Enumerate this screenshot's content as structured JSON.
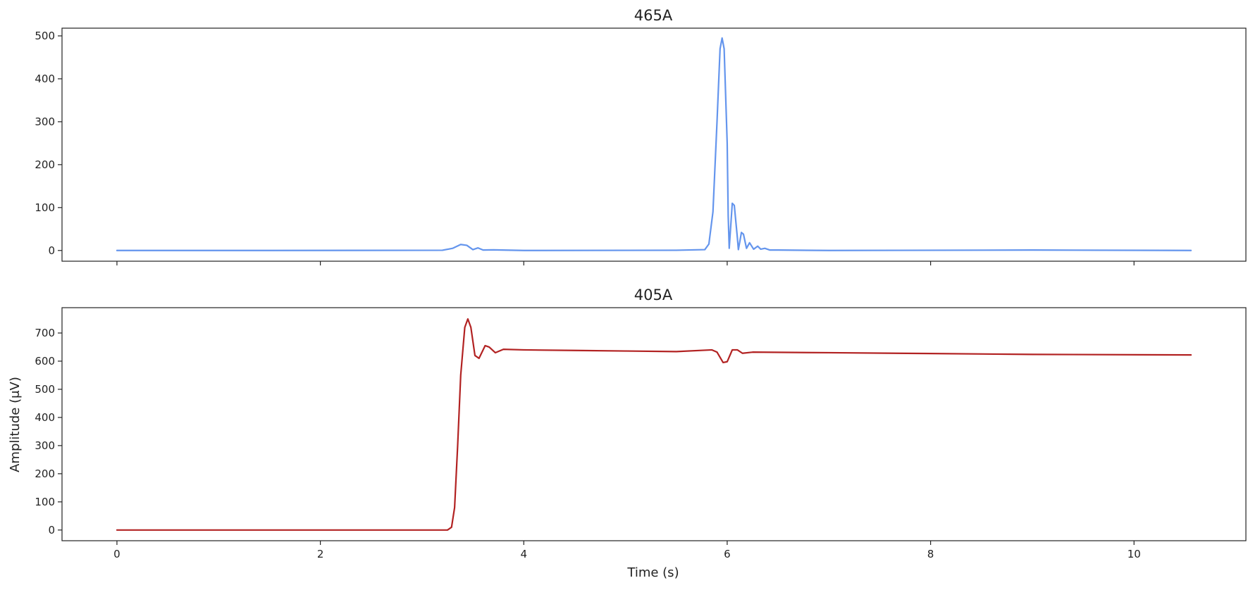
{
  "chart_data": [
    {
      "type": "line",
      "title": "465A",
      "xlabel": "",
      "ylabel": "",
      "xlim": [
        -0.54,
        11.1
      ],
      "ylim": [
        -25,
        518
      ],
      "x_ticks": [
        0,
        2,
        4,
        6,
        8,
        10
      ],
      "x_tick_labels_visible": false,
      "y_ticks": [
        0,
        100,
        200,
        300,
        400,
        500
      ],
      "y_tick_labels": [
        "0",
        "100",
        "200",
        "300",
        "400",
        "500"
      ],
      "grid": false,
      "series": [
        {
          "color": "#6495ED",
          "points": [
            [
              0,
              0
            ],
            [
              1.5,
              0
            ],
            [
              3.2,
              0.5
            ],
            [
              3.3,
              5
            ],
            [
              3.38,
              14
            ],
            [
              3.44,
              12
            ],
            [
              3.5,
              2
            ],
            [
              3.55,
              6
            ],
            [
              3.6,
              1
            ],
            [
              3.7,
              1.5
            ],
            [
              4.0,
              0
            ],
            [
              5.5,
              0.5
            ],
            [
              5.78,
              2
            ],
            [
              5.82,
              15
            ],
            [
              5.86,
              90
            ],
            [
              5.9,
              300
            ],
            [
              5.93,
              470
            ],
            [
              5.95,
              495
            ],
            [
              5.97,
              470
            ],
            [
              6.0,
              250
            ],
            [
              6.01,
              80
            ],
            [
              6.02,
              5
            ],
            [
              6.05,
              110
            ],
            [
              6.07,
              105
            ],
            [
              6.1,
              30
            ],
            [
              6.11,
              2
            ],
            [
              6.14,
              42
            ],
            [
              6.16,
              38
            ],
            [
              6.19,
              5
            ],
            [
              6.22,
              18
            ],
            [
              6.26,
              3
            ],
            [
              6.3,
              10
            ],
            [
              6.33,
              3
            ],
            [
              6.37,
              5
            ],
            [
              6.42,
              1
            ],
            [
              6.5,
              1
            ],
            [
              7.0,
              0
            ],
            [
              9.0,
              1
            ],
            [
              10.56,
              0
            ]
          ]
        }
      ]
    },
    {
      "type": "line",
      "title": "405A",
      "xlabel": "Time (s)",
      "ylabel": "Amplitude (μV)",
      "xlim": [
        -0.54,
        11.1
      ],
      "ylim": [
        -38,
        790
      ],
      "x_ticks": [
        0,
        2,
        4,
        6,
        8,
        10
      ],
      "x_tick_labels": [
        "0",
        "2",
        "4",
        "6",
        "8",
        "10"
      ],
      "y_ticks": [
        0,
        100,
        200,
        300,
        400,
        500,
        600,
        700
      ],
      "y_tick_labels": [
        "0",
        "100",
        "200",
        "300",
        "400",
        "500",
        "600",
        "700"
      ],
      "grid": false,
      "series": [
        {
          "color": "#B22222",
          "points": [
            [
              0,
              0
            ],
            [
              2.0,
              0
            ],
            [
              3.25,
              0
            ],
            [
              3.29,
              10
            ],
            [
              3.32,
              80
            ],
            [
              3.35,
              300
            ],
            [
              3.38,
              550
            ],
            [
              3.42,
              720
            ],
            [
              3.45,
              750
            ],
            [
              3.48,
              720
            ],
            [
              3.52,
              620
            ],
            [
              3.56,
              610
            ],
            [
              3.62,
              655
            ],
            [
              3.66,
              650
            ],
            [
              3.72,
              630
            ],
            [
              3.8,
              642
            ],
            [
              4.0,
              640
            ],
            [
              4.5,
              638
            ],
            [
              5.0,
              636
            ],
            [
              5.5,
              634
            ],
            [
              5.85,
              640
            ],
            [
              5.9,
              632
            ],
            [
              5.96,
              595
            ],
            [
              6.0,
              598
            ],
            [
              6.05,
              640
            ],
            [
              6.1,
              640
            ],
            [
              6.15,
              628
            ],
            [
              6.25,
              632
            ],
            [
              7.0,
              630
            ],
            [
              8.0,
              627
            ],
            [
              9.0,
              624
            ],
            [
              10.56,
              622
            ]
          ]
        }
      ]
    }
  ]
}
